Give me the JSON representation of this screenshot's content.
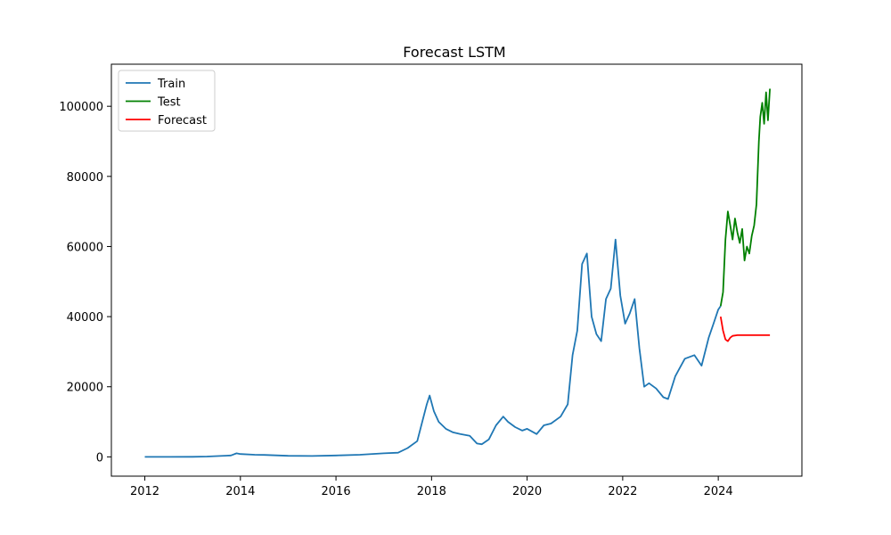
{
  "chart_data": {
    "type": "line",
    "title": "Forecast LSTM",
    "xlabel": "",
    "ylabel": "",
    "xlim": [
      2011.3,
      2025.75
    ],
    "ylim": [
      -5500,
      112000
    ],
    "x_ticks": [
      2012,
      2014,
      2016,
      2018,
      2020,
      2022,
      2024
    ],
    "x_tick_labels": [
      "2012",
      "2014",
      "2016",
      "2018",
      "2020",
      "2022",
      "2024"
    ],
    "y_ticks": [
      0,
      20000,
      40000,
      60000,
      80000,
      100000
    ],
    "y_tick_labels": [
      "0",
      "20000",
      "40000",
      "60000",
      "80000",
      "100000"
    ],
    "grid": false,
    "legend_position": "upper-left",
    "series": [
      {
        "name": "Train",
        "color": "#1f77b4",
        "x": [
          2012.0,
          2012.5,
          2013.0,
          2013.3,
          2013.8,
          2013.92,
          2014.0,
          2014.3,
          2014.5,
          2015.0,
          2015.5,
          2016.0,
          2016.5,
          2017.0,
          2017.3,
          2017.5,
          2017.7,
          2017.9,
          2017.96,
          2018.05,
          2018.15,
          2018.3,
          2018.45,
          2018.6,
          2018.8,
          2018.95,
          2019.05,
          2019.2,
          2019.35,
          2019.5,
          2019.6,
          2019.75,
          2019.9,
          2020.0,
          2020.2,
          2020.35,
          2020.5,
          2020.7,
          2020.85,
          2020.95,
          2021.05,
          2021.15,
          2021.25,
          2021.35,
          2021.45,
          2021.55,
          2021.65,
          2021.75,
          2021.85,
          2021.95,
          2022.05,
          2022.15,
          2022.25,
          2022.35,
          2022.45,
          2022.55,
          2022.7,
          2022.85,
          2022.95,
          2023.1,
          2023.3,
          2023.5,
          2023.65,
          2023.8,
          2023.9,
          2024.0,
          2024.05
        ],
        "values": [
          5,
          6,
          13,
          100,
          400,
          1000,
          800,
          600,
          550,
          300,
          250,
          400,
          600,
          1000,
          1200,
          2500,
          4500,
          15000,
          17500,
          13000,
          10000,
          8000,
          7000,
          6500,
          6000,
          3800,
          3600,
          5000,
          9000,
          11500,
          10000,
          8500,
          7500,
          8000,
          6500,
          9000,
          9500,
          11500,
          15000,
          29000,
          36000,
          55000,
          58000,
          40000,
          35000,
          33000,
          45000,
          48000,
          62000,
          46000,
          38000,
          41000,
          45000,
          31000,
          20000,
          21000,
          19500,
          17000,
          16500,
          23000,
          28000,
          29000,
          26000,
          34000,
          38000,
          42000,
          43000
        ]
      },
      {
        "name": "Test",
        "color": "#008000",
        "x": [
          2024.05,
          2024.1,
          2024.15,
          2024.2,
          2024.25,
          2024.3,
          2024.35,
          2024.4,
          2024.45,
          2024.5,
          2024.55,
          2024.6,
          2024.65,
          2024.7,
          2024.75,
          2024.8,
          2024.85,
          2024.88,
          2024.92,
          2024.96,
          2025.0,
          2025.04,
          2025.08
        ],
        "values": [
          43000,
          47000,
          62000,
          70000,
          66000,
          62000,
          68000,
          64000,
          61000,
          65000,
          56000,
          60000,
          58000,
          63000,
          66000,
          72000,
          90000,
          97000,
          101000,
          95000,
          104000,
          96000,
          105000
        ]
      },
      {
        "name": "Forecast",
        "color": "#ff0000",
        "x": [
          2024.05,
          2024.1,
          2024.15,
          2024.2,
          2024.25,
          2024.3,
          2024.4,
          2024.6,
          2024.8,
          2025.0,
          2025.08
        ],
        "values": [
          40000,
          36000,
          33500,
          33000,
          34000,
          34500,
          34700,
          34700,
          34700,
          34700,
          34700
        ]
      }
    ]
  }
}
